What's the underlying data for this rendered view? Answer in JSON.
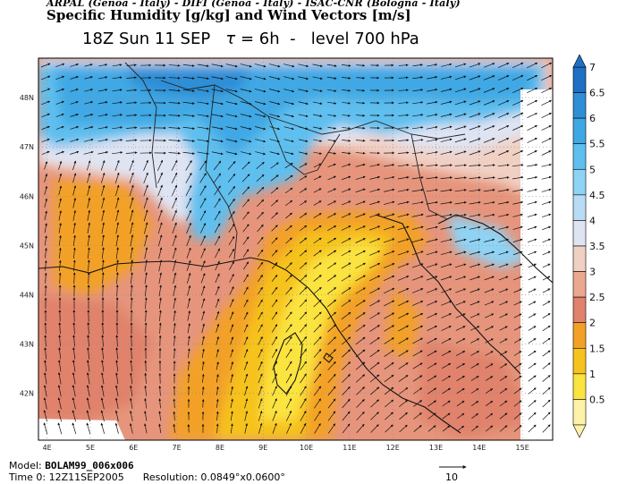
{
  "header": {
    "credits": "ARPAL (Genoa - Italy)  -  DIFI (Genoa - Italy)  -  ISAC-CNR (Bologna - Italy)",
    "title": "Specific Humidity [g/kg] and Wind Vectors [m/s]",
    "run_time": "18Z Sun 11 SEP",
    "tau_symbol": "τ",
    "tau_value": "= 6h",
    "level": "level 700 hPa"
  },
  "footer": {
    "model_label": "Model:",
    "model_value": "BOLAM99_006x006",
    "time_label": "Time 0:",
    "time_value": "12Z11SEP2005",
    "resolution_label": "Resolution:",
    "resolution_value": "0.0849°x0.0600°",
    "reference_vector": "10"
  },
  "map": {
    "lon_labels": [
      "4E",
      "5E",
      "6E",
      "7E",
      "8E",
      "9E",
      "10E",
      "11E",
      "12E",
      "13E",
      "14E",
      "15E"
    ],
    "lat_labels": [
      "48N",
      "47N",
      "46N",
      "45N",
      "44N",
      "43N",
      "42N"
    ],
    "lon_range": [
      3.8,
      15.7
    ],
    "lat_range": [
      41.05,
      48.8
    ]
  },
  "colorbar": {
    "labels": [
      "7",
      "6.5",
      "6",
      "5.5",
      "5",
      "4.5",
      "4",
      "3.5",
      "3",
      "2.5",
      "2",
      "1.5",
      "1",
      "0.5"
    ],
    "colors": [
      "#1f6fc4",
      "#2f8ed6",
      "#3fa8e4",
      "#5fbfef",
      "#8fd3f4",
      "#b8dcf6",
      "#dfe4f3",
      "#f1d0c4",
      "#eba88f",
      "#e0826c",
      "#f3a126",
      "#f6c21e",
      "#fbe340",
      "#fdf2a8"
    ]
  }
}
